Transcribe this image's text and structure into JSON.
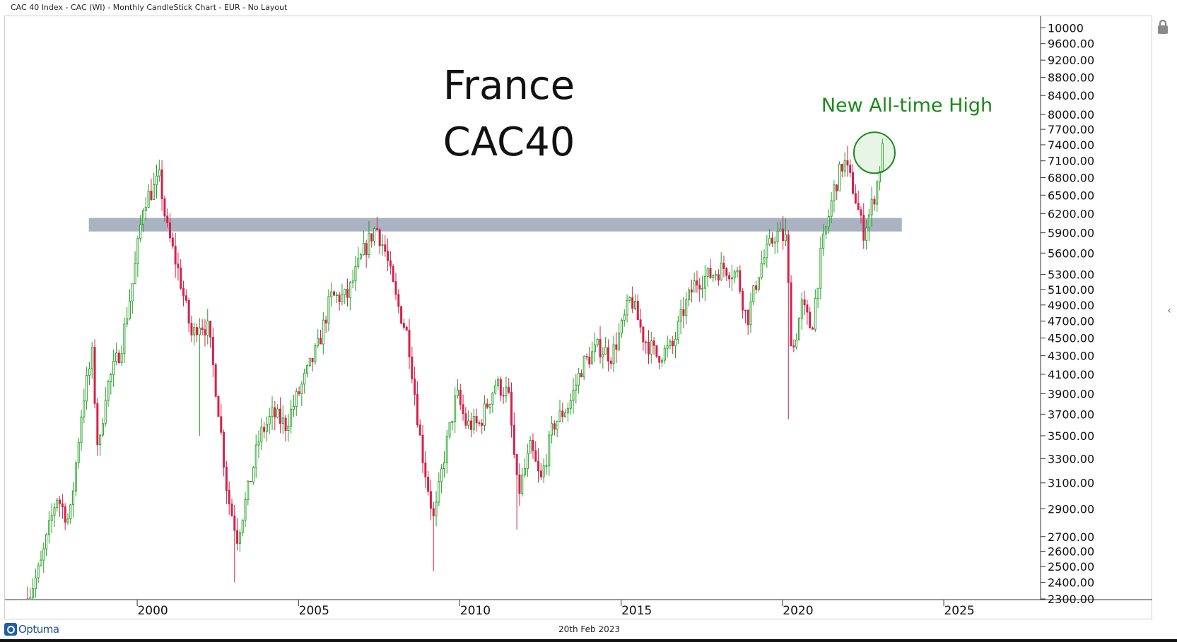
{
  "header": {
    "title": "CAC 40 Index - CAC (WI) - Monthly CandleStick Chart - EUR - No Layout"
  },
  "footer": {
    "date": "20th Feb 2023",
    "logo_text": "Optuma"
  },
  "chart_data": {
    "type": "candlestick",
    "title_lines": [
      "France",
      "CAC40"
    ],
    "annotation": {
      "text": "New All-time High",
      "color": "#1a8a1a",
      "x": 2022.85,
      "y": 7250
    },
    "resistance_zone": {
      "x0": 1998.5,
      "x1": 2023.7,
      "y0": 5920,
      "y1": 6130,
      "color": "#aab3c2"
    },
    "x_ticks": [
      "2000",
      "2005",
      "2010",
      "2015",
      "2020",
      "2025"
    ],
    "x_tick_values": [
      2000,
      2005,
      2010,
      2015,
      2020,
      2025
    ],
    "y_ticks": [
      "10000",
      "9600.00",
      "9200.00",
      "8800.00",
      "8400.00",
      "8000.00",
      "7700.00",
      "7400.00",
      "7100.00",
      "6800.00",
      "6500.00",
      "6200.00",
      "5900.00",
      "5600.00",
      "5300.00",
      "5100.00",
      "4900.00",
      "4700.00",
      "4500.00",
      "4300.00",
      "4100.00",
      "3900.00",
      "3700.00",
      "3500.00",
      "3300.00",
      "3100.00",
      "2900.00",
      "2700.00",
      "2600.00",
      "2500.00",
      "2400.00",
      "2300.00"
    ],
    "y_scale": "log",
    "ylim": [
      2300,
      10300
    ],
    "xlim": [
      1995.9,
      2028.0
    ],
    "up_color": "#22a022",
    "down_color": "#d6204a",
    "close_path": [
      [
        1996.6,
        2300
      ],
      [
        1997.0,
        2500
      ],
      [
        1997.5,
        3000
      ],
      [
        1997.9,
        2800
      ],
      [
        1998.3,
        3800
      ],
      [
        1998.6,
        4300
      ],
      [
        1998.8,
        3300
      ],
      [
        1999.0,
        3900
      ],
      [
        1999.5,
        4400
      ],
      [
        1999.9,
        5300
      ],
      [
        2000.2,
        6400
      ],
      [
        2000.5,
        6600
      ],
      [
        2000.7,
        6800
      ],
      [
        2000.9,
        6000
      ],
      [
        2001.3,
        5300
      ],
      [
        2001.7,
        4500
      ],
      [
        2001.9,
        4700
      ],
      [
        2002.2,
        4600
      ],
      [
        2002.5,
        3800
      ],
      [
        2002.8,
        3000
      ],
      [
        2003.1,
        2700
      ],
      [
        2003.4,
        3000
      ],
      [
        2003.8,
        3500
      ],
      [
        2004.2,
        3700
      ],
      [
        2004.6,
        3600
      ],
      [
        2005.0,
        3900
      ],
      [
        2005.6,
        4400
      ],
      [
        2006.0,
        5000
      ],
      [
        2006.5,
        5000
      ],
      [
        2007.0,
        5600
      ],
      [
        2007.4,
        6000
      ],
      [
        2007.7,
        5600
      ],
      [
        2008.0,
        5000
      ],
      [
        2008.4,
        4500
      ],
      [
        2008.8,
        3400
      ],
      [
        2009.2,
        2800
      ],
      [
        2009.5,
        3300
      ],
      [
        2009.9,
        3900
      ],
      [
        2010.2,
        3600
      ],
      [
        2010.6,
        3600
      ],
      [
        2011.1,
        4000
      ],
      [
        2011.5,
        3900
      ],
      [
        2011.8,
        3000
      ],
      [
        2012.2,
        3400
      ],
      [
        2012.5,
        3100
      ],
      [
        2012.9,
        3600
      ],
      [
        2013.4,
        3800
      ],
      [
        2013.8,
        4200
      ],
      [
        2014.3,
        4400
      ],
      [
        2014.7,
        4300
      ],
      [
        2015.0,
        4600
      ],
      [
        2015.3,
        5000
      ],
      [
        2015.7,
        4500
      ],
      [
        2016.1,
        4300
      ],
      [
        2016.6,
        4400
      ],
      [
        2016.9,
        4800
      ],
      [
        2017.3,
        5200
      ],
      [
        2017.8,
        5300
      ],
      [
        2018.2,
        5400
      ],
      [
        2018.6,
        5300
      ],
      [
        2018.9,
        4700
      ],
      [
        2019.3,
        5400
      ],
      [
        2019.8,
        5900
      ],
      [
        2020.1,
        5800
      ],
      [
        2020.3,
        4300
      ],
      [
        2020.6,
        4900
      ],
      [
        2020.9,
        4600
      ],
      [
        2021.2,
        5600
      ],
      [
        2021.6,
        6600
      ],
      [
        2021.9,
        7100
      ],
      [
        2022.2,
        6600
      ],
      [
        2022.5,
        5900
      ],
      [
        2022.7,
        6200
      ],
      [
        2022.9,
        6600
      ],
      [
        2023.1,
        7300
      ]
    ],
    "extremes": [
      {
        "x": 2000.6,
        "y": 6950
      },
      {
        "x": 2001.9,
        "y": 3500
      },
      {
        "x": 2003.0,
        "y": 2400
      },
      {
        "x": 2007.4,
        "y": 6150
      },
      {
        "x": 2009.2,
        "y": 2470
      },
      {
        "x": 2011.8,
        "y": 2750
      },
      {
        "x": 2020.1,
        "y": 6120
      },
      {
        "x": 2020.2,
        "y": 3650
      },
      {
        "x": 2022.0,
        "y": 7380
      },
      {
        "x": 2022.6,
        "y": 5650
      },
      {
        "x": 2023.1,
        "y": 7380
      }
    ]
  }
}
